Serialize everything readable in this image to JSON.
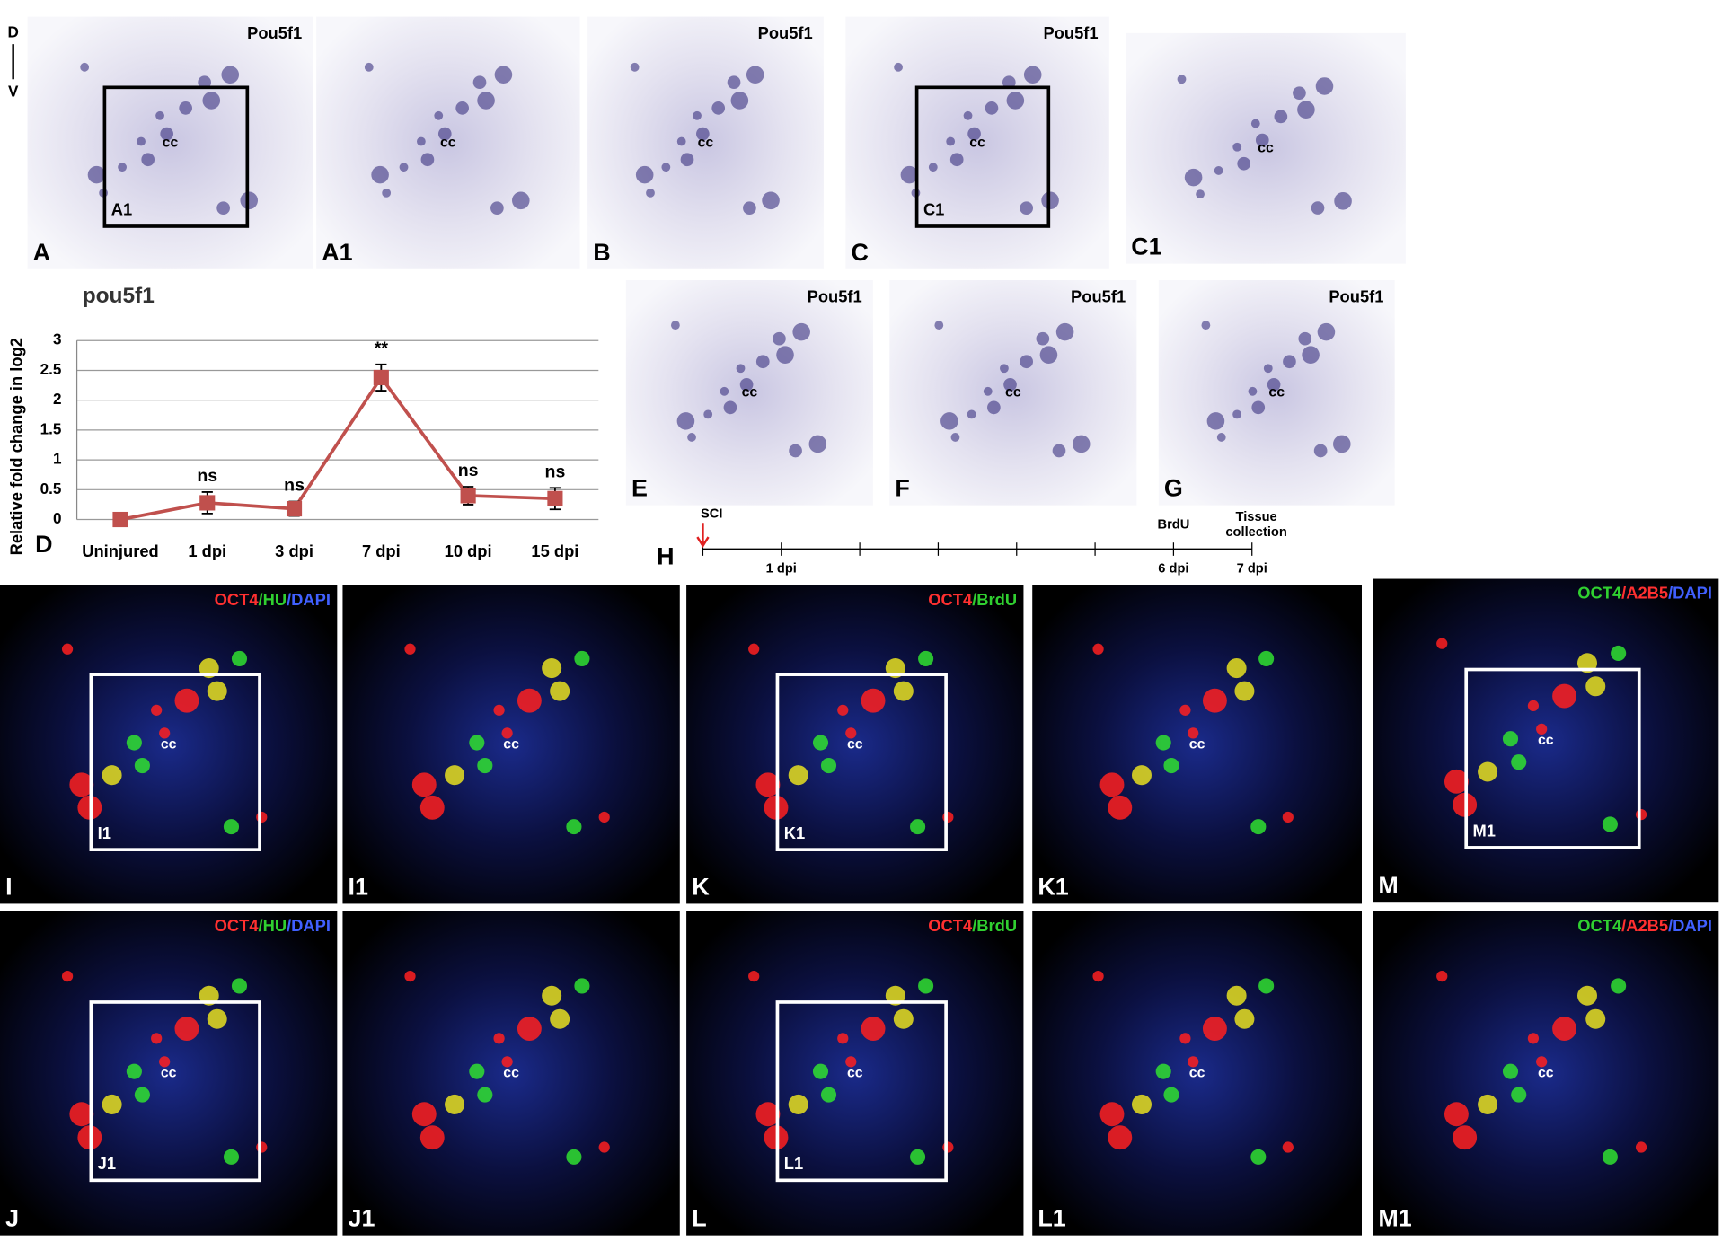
{
  "orientation": {
    "top": "D",
    "bottom": "V"
  },
  "panels": [
    {
      "label": "A",
      "kind": "bright",
      "stain": "Pou5f1",
      "cc": "cc",
      "inset": "A1"
    },
    {
      "label": "A1",
      "kind": "bright",
      "cc": "cc"
    },
    {
      "label": "B",
      "kind": "bright",
      "stain": "Pou5f1",
      "cc": "cc"
    },
    {
      "label": "C",
      "kind": "bright",
      "stain": "Pou5f1",
      "cc": "cc",
      "inset": "C1"
    },
    {
      "label": "C1",
      "kind": "bright",
      "cc": "cc"
    },
    {
      "label": "E",
      "kind": "bright",
      "stain": "Pou5f1",
      "cc": "cc"
    },
    {
      "label": "F",
      "kind": "bright",
      "stain": "Pou5f1",
      "cc": "cc"
    },
    {
      "label": "G",
      "kind": "bright",
      "stain": "Pou5f1",
      "cc": "cc"
    },
    {
      "label": "I",
      "kind": "fluor",
      "stain_parts": [
        {
          "text": "OCT4",
          "color": "#ff3030"
        },
        {
          "text": "/HU",
          "color": "#30d030"
        },
        {
          "text": "/DAPI",
          "color": "#4060ff"
        }
      ],
      "cc": "cc",
      "inset": "I1"
    },
    {
      "label": "I1",
      "kind": "fluor",
      "cc": "cc"
    },
    {
      "label": "K",
      "kind": "fluor",
      "stain_parts": [
        {
          "text": "OCT4",
          "color": "#ff3030"
        },
        {
          "text": "/BrdU",
          "color": "#30d030"
        }
      ],
      "cc": "cc",
      "inset": "K1"
    },
    {
      "label": "K1",
      "kind": "fluor",
      "cc": "cc"
    },
    {
      "label": "M",
      "kind": "fluor",
      "stain_parts": [
        {
          "text": "OCT4",
          "color": "#30d030"
        },
        {
          "text": "/A2B5",
          "color": "#ff3030"
        },
        {
          "text": "/DAPI",
          "color": "#4060ff"
        }
      ],
      "cc": "cc",
      "inset": "M1"
    },
    {
      "label": "J",
      "kind": "fluor",
      "stain_parts": [
        {
          "text": "OCT4",
          "color": "#ff3030"
        },
        {
          "text": "/HU",
          "color": "#30d030"
        },
        {
          "text": "/DAPI",
          "color": "#4060ff"
        }
      ],
      "cc": "cc",
      "inset": "J1"
    },
    {
      "label": "J1",
      "kind": "fluor",
      "cc": "cc"
    },
    {
      "label": "L",
      "kind": "fluor",
      "stain_parts": [
        {
          "text": "OCT4",
          "color": "#ff3030"
        },
        {
          "text": "/BrdU",
          "color": "#30d030"
        }
      ],
      "cc": "cc",
      "inset": "L1"
    },
    {
      "label": "L1",
      "kind": "fluor",
      "cc": "cc"
    },
    {
      "label": "M1",
      "kind": "fluor",
      "stain_parts": [
        {
          "text": "OCT4",
          "color": "#30d030"
        },
        {
          "text": "/A2B5",
          "color": "#ff3030"
        },
        {
          "text": "/DAPI",
          "color": "#4060ff"
        }
      ],
      "cc": "cc"
    }
  ],
  "timeline": {
    "label": "H",
    "start": "SCI",
    "ticks": [
      "1 dpi",
      "6 dpi",
      "7 dpi"
    ],
    "event": "BrdU",
    "end": [
      "Tissue",
      "collection"
    ]
  },
  "chart_data": {
    "type": "line",
    "panel_label": "D",
    "title": "pou5f1",
    "y_label": "Relative fold change in log2",
    "categories": [
      "Uninjured",
      "1 dpi",
      "3 dpi",
      "7 dpi",
      "10 dpi",
      "15 dpi"
    ],
    "values": [
      0,
      0.28,
      0.18,
      2.38,
      0.4,
      0.35
    ],
    "errors": [
      0.02,
      0.18,
      0.12,
      0.22,
      0.15,
      0.18
    ],
    "point_labels": [
      null,
      "ns",
      "ns",
      "**",
      "ns",
      "ns"
    ],
    "color": "#c0504d",
    "ylim": [
      0,
      3
    ],
    "yticks": [
      0,
      0.5,
      1,
      1.5,
      2,
      2.5,
      3
    ],
    "grid": true
  }
}
